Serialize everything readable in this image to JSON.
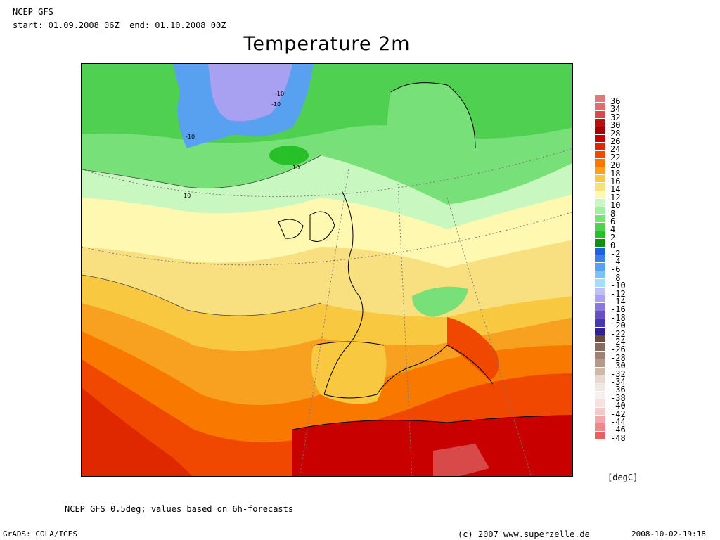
{
  "header": {
    "model": "NCEP GFS",
    "period": "start: 01.09.2008_06Z  end: 01.10.2008_00Z",
    "title": "Temperature 2m"
  },
  "map": {
    "contour_labels": [
      "-10",
      "-10",
      "-10",
      "10",
      "10"
    ]
  },
  "legend": {
    "unit": "[degC]",
    "ticks": [
      "36",
      "34",
      "32",
      "30",
      "28",
      "26",
      "24",
      "22",
      "20",
      "18",
      "16",
      "14",
      "12",
      "10",
      "8",
      "6",
      "4",
      "2",
      "0",
      "-2",
      "-4",
      "-6",
      "-8",
      "-10",
      "-12",
      "-14",
      "-16",
      "-18",
      "-20",
      "-22",
      "-24",
      "-26",
      "-28",
      "-30",
      "-32",
      "-34",
      "-36",
      "-38",
      "-40",
      "-42",
      "-44",
      "-46",
      "-48"
    ],
    "colors": [
      "#e07a7a",
      "#e56a6a",
      "#d84a4a",
      "#b81010",
      "#a00000",
      "#c80000",
      "#e02800",
      "#f04800",
      "#f87800",
      "#f8a020",
      "#f8c840",
      "#f8e080",
      "#fff8b0",
      "#c8f8c0",
      "#a0f0a0",
      "#78e078",
      "#50d050",
      "#28c028",
      "#109010",
      "#2060e0",
      "#3880e8",
      "#58a0f0",
      "#80c0f8",
      "#a8dcfc",
      "#c0c0f8",
      "#a8a0f0",
      "#8878e0",
      "#6850c8",
      "#4838b0",
      "#302090",
      "#6a4a3a",
      "#8a6a5a",
      "#a08070",
      "#b89888",
      "#d0b8a8",
      "#e8d8d0",
      "#f0e8e4",
      "#f8f0f0",
      "#f8e0e0",
      "#f4c8c8",
      "#f0a8a8",
      "#ec8888",
      "#e86060"
    ]
  },
  "footer": {
    "note": "NCEP GFS 0.5deg; values based on 6h-forecasts",
    "left": "GrADS: COLA/IGES",
    "mid": "(c) 2007 www.superzelle.de",
    "right": "2008-10-02-19:18"
  }
}
